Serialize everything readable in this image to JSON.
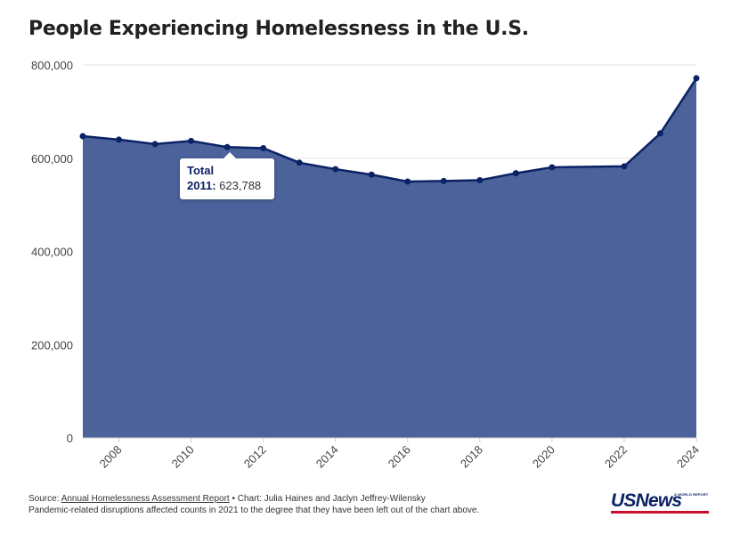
{
  "title": "People Experiencing Homelessness in the U.S.",
  "chart_data": {
    "type": "area",
    "title": "People Experiencing Homelessness in the U.S.",
    "xlabel": "",
    "ylabel": "",
    "series": [
      {
        "name": "Total",
        "x": [
          2007,
          2008,
          2009,
          2010,
          2011,
          2012,
          2013,
          2014,
          2015,
          2016,
          2017,
          2018,
          2019,
          2020,
          2022,
          2023,
          2024
        ],
        "values": [
          647258,
          639784,
          630227,
          637077,
          623788,
          621553,
          590364,
          576450,
          564708,
          549928,
          550996,
          552830,
          567715,
          580466,
          582462,
          653104,
          771480
        ]
      }
    ],
    "xlim": [
      2007,
      2024
    ],
    "ylim": [
      0,
      800000
    ],
    "x_ticks": [
      "2008",
      "2010",
      "2012",
      "2014",
      "2016",
      "2018",
      "2020",
      "2022",
      "2024"
    ],
    "y_ticks": [
      "0",
      "200,000",
      "400,000",
      "600,000",
      "800,000"
    ],
    "grid": "horizontal",
    "colors": {
      "fill": "#3d5591",
      "line": "#0b2265",
      "grid": "#e6e6e6"
    }
  },
  "tooltip": {
    "series": "Total",
    "year": "2011:",
    "value": "623,788"
  },
  "footer": {
    "source_prefix": "Source: ",
    "source_link": "Annual Homelessness Assessment Report",
    "credit": " • Chart: Julia Haines and Jaclyn Jeffrey-Wilensky",
    "note": "Pandemic-related disruptions affected counts in 2021 to the degree that they have been left out of the chart above."
  },
  "logo": {
    "main": "USNews",
    "small": "& WORLD REPORT"
  }
}
